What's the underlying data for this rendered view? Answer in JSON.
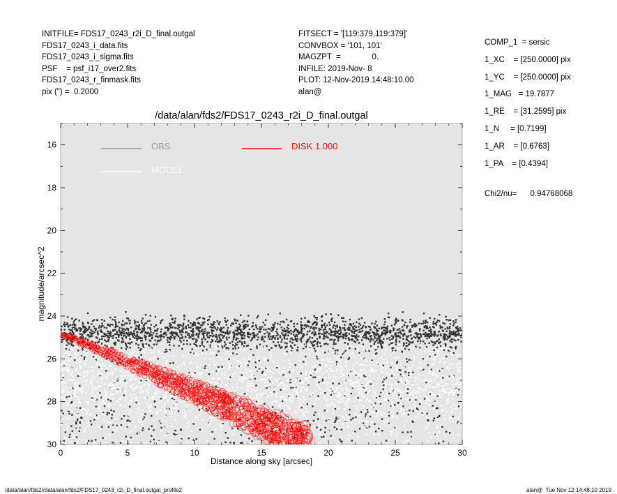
{
  "header_left": [
    "INITFILE= FDS17_0243_r2i_D_final.outgal",
    "FDS17_0243_i_data.fits",
    "FDS17_0243_i_sigma.fits",
    "PSF    = psf_i17_over2.fits",
    "FDS17_0243_r_finmask.fits",
    "pix (\") =  0.2000"
  ],
  "header_middle": [
    "FITSECT = '[119:379,119:379]'",
    "CONVBOX = '101, 101'",
    "MAGZPT  =              0.",
    "INFILE: 2019-Nov- 8",
    "PLOT: 12-Nov-2019 14:48:10.00",
    "alan@"
  ],
  "header_right": [
    "COMP_1  = sersic",
    "1_XC    = [250.0000] pix",
    "1_YC    = [250.0000] pix",
    "1_MAG   = 19.7877",
    "1_RE    = [31.2595] pix",
    "1_N     = [0.7199]",
    "1_AR    = [0.6763]",
    "1_PA    = [0.4394]"
  ],
  "chi2": "Chi2/nu=      0.94768068",
  "footer_left": "/data/alan/fds2//data/alan/fds2/FDS17_0243_r2i_D_final.outgal_profile2",
  "footer_right": "alan@  Tue Nov 12 14:48:10 2019",
  "chart_data": {
    "type": "scatter",
    "title": "/data/alan/fds2/FDS17_0243_r2i_D_final.outgal",
    "xlabel": "Distance along sky [arcsec]",
    "ylabel": "magnitude/arcsec^2",
    "xlim": [
      0,
      30
    ],
    "ylim": [
      30,
      15
    ],
    "y_inverted": true,
    "x_ticks": [
      0,
      5,
      10,
      15,
      20,
      25,
      30
    ],
    "y_ticks": [
      16,
      18,
      20,
      22,
      24,
      26,
      28,
      30
    ],
    "grid": false,
    "background": "#e5e5e5",
    "legend": [
      {
        "label": "OBS",
        "color": "#999999"
      },
      {
        "label": "MODEL",
        "color": "#ffffff"
      },
      {
        "label": "DISK  1.000",
        "color": "#ff0000"
      }
    ],
    "series": [
      {
        "name": "OBS",
        "color": "#333333",
        "description_points": "dense band at ~24.6 mag, scatter to 30 mag",
        "band_center": 24.8,
        "band_top": 23.8
      },
      {
        "name": "MODEL",
        "color": "#ffffff",
        "band_center": 27.0
      },
      {
        "name": "DISK  1.000",
        "color": "#ff0000",
        "start": [
          0,
          24.85
        ],
        "end": [
          18,
          30
        ]
      }
    ]
  }
}
